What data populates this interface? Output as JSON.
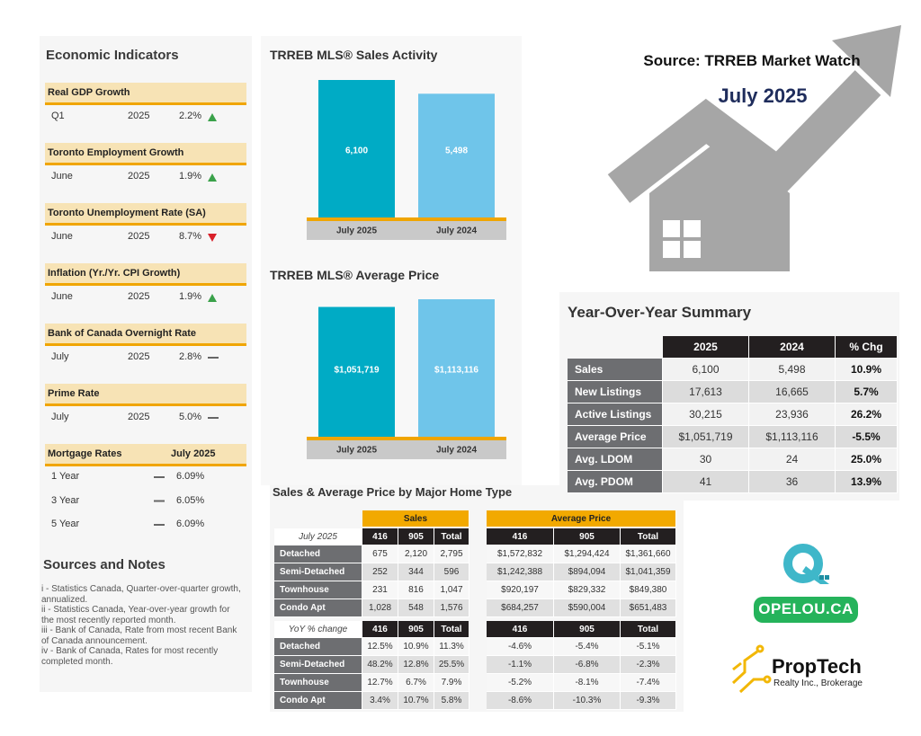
{
  "header": {
    "source": "Source: TRREB Market Watch",
    "date": "July 2025"
  },
  "economic_indicators": {
    "title": "Economic Indicators",
    "groups": [
      {
        "title": "Real GDP Growth",
        "rows": [
          {
            "period": "Q1",
            "year": "2025",
            "value": "2.2%"
          }
        ]
      },
      {
        "title": "Toronto Employment Growth",
        "rows": [
          {
            "period": "June",
            "year": "2025",
            "value": "1.9%"
          }
        ]
      },
      {
        "title": "Toronto Unemployment Rate (SA)",
        "rows": [
          {
            "period": "June",
            "year": "2025",
            "value": "8.7%"
          }
        ]
      },
      {
        "title": "Inflation (Yr./Yr. CPI Growth)",
        "rows": [
          {
            "period": "June",
            "year": "2025",
            "value": "1.9%"
          }
        ]
      },
      {
        "title": "Bank of Canada Overnight Rate",
        "rows": [
          {
            "period": "July",
            "year": "2025",
            "value": "2.8%"
          }
        ]
      },
      {
        "title": "Prime Rate",
        "rows": [
          {
            "period": "July",
            "year": "2025",
            "value": "5.0%"
          }
        ]
      }
    ]
  },
  "mortgage_rates": {
    "title": "Mortgage Rates",
    "date": "July 2025",
    "rows": [
      {
        "term": "1 Year",
        "value": "6.09%"
      },
      {
        "term": "3 Year",
        "value": "6.05%"
      },
      {
        "term": "5 Year",
        "value": "6.09%"
      }
    ]
  },
  "chart_data": [
    {
      "type": "bar",
      "title": "TRREB MLS® Sales Activity",
      "categories": [
        "July 2025",
        "July 2024"
      ],
      "values": [
        6100,
        5498
      ],
      "value_labels": [
        "6,100",
        "5,498"
      ],
      "colors": [
        "#00abc5",
        "#6fc5ea"
      ]
    },
    {
      "type": "bar",
      "title": "TRREB MLS® Average Price",
      "categories": [
        "July 2025",
        "July 2024"
      ],
      "values": [
        1051719,
        1113116
      ],
      "value_labels": [
        "$1,051,719",
        "$1,113,116"
      ],
      "colors": [
        "#00abc5",
        "#6fc5ea"
      ]
    }
  ],
  "yoy_summary": {
    "title": "Year-Over-Year Summary",
    "columns": [
      "2025",
      "2024",
      "% Chg"
    ],
    "rows": [
      [
        "Sales",
        "6,100",
        "5,498",
        "10.9%"
      ],
      [
        "New Listings",
        "17,613",
        "16,665",
        "5.7%"
      ],
      [
        "Active Listings",
        "30,215",
        "23,936",
        "26.2%"
      ],
      [
        "Average Price",
        "$1,051,719",
        "$1,113,116",
        "-5.5%"
      ],
      [
        "Avg. LDOM",
        "30",
        "24",
        "25.0%"
      ],
      [
        "Avg. PDOM",
        "41",
        "36",
        "13.9%"
      ]
    ]
  },
  "home_type": {
    "title": "Sales & Average Price by Major Home Type",
    "groups": [
      "Sales",
      "Average Price"
    ],
    "blocks": [
      {
        "label": "July 2025",
        "columns": [
          "416",
          "905",
          "Total",
          "416",
          "905",
          "Total"
        ],
        "rows": [
          {
            "type": "Detached",
            "values": [
              "675",
              "2,120",
              "2,795",
              "$1,572,832",
              "$1,294,424",
              "$1,361,660"
            ]
          },
          {
            "type": "Semi-Detached",
            "values": [
              "252",
              "344",
              "596",
              "$1,242,388",
              "$894,094",
              "$1,041,359"
            ]
          },
          {
            "type": "Townhouse",
            "values": [
              "231",
              "816",
              "1,047",
              "$920,197",
              "$829,332",
              "$849,380"
            ]
          },
          {
            "type": "Condo Apt",
            "values": [
              "1,028",
              "548",
              "1,576",
              "$684,257",
              "$590,004",
              "$651,483"
            ]
          }
        ]
      },
      {
        "label": "YoY % change",
        "columns": [
          "416",
          "905",
          "Total",
          "416",
          "905",
          "Total"
        ],
        "rows": [
          {
            "type": "Detached",
            "values": [
              "12.5%",
              "10.9%",
              "11.3%",
              "-4.6%",
              "-5.4%",
              "-5.1%"
            ]
          },
          {
            "type": "Semi-Detached",
            "values": [
              "48.2%",
              "12.8%",
              "25.5%",
              "-1.1%",
              "-6.8%",
              "-2.3%"
            ]
          },
          {
            "type": "Townhouse",
            "values": [
              "12.7%",
              "6.7%",
              "7.9%",
              "-5.2%",
              "-8.1%",
              "-7.4%"
            ]
          },
          {
            "type": "Condo Apt",
            "values": [
              "3.4%",
              "10.7%",
              "5.8%",
              "-8.6%",
              "-10.3%",
              "-9.3%"
            ]
          }
        ]
      }
    ]
  },
  "sources": {
    "title": "Sources and Notes",
    "notes": [
      "i - Statistics Canada, Quarter-over-quarter growth, annualized.",
      "ii - Statistics Canada, Year-over-year growth for the most recently reported month.",
      "iii - Bank of Canada, Rate from most recent Bank of Canada announcement.",
      "iv - Bank of Canada, Rates for most recently completed month."
    ]
  },
  "logos": {
    "opelou": "OPELOU.CA",
    "proptech": "PropTech",
    "proptech_sub": "Realty Inc., Brokerage"
  }
}
